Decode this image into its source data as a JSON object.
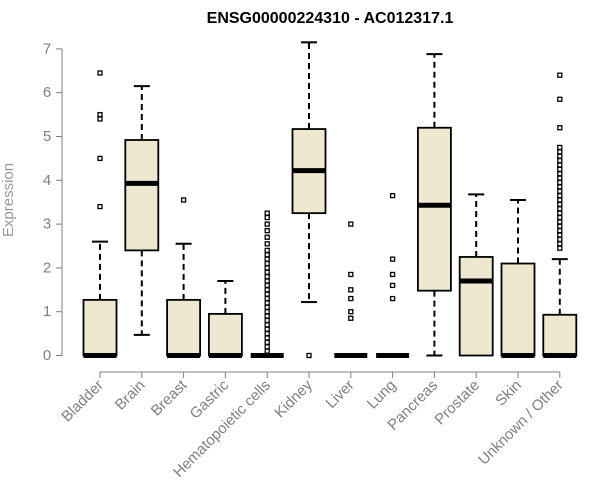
{
  "chart_data": {
    "type": "boxplot",
    "title": "ENSG00000224310 - AC012317.1",
    "xlabel": "",
    "ylabel": "Expression",
    "ylim": [
      0,
      7.2
    ],
    "yticks": [
      0,
      1,
      2,
      3,
      4,
      5,
      6,
      7
    ],
    "grid": false,
    "box_fill": "#efe8d0",
    "box_stroke": "#000000",
    "axis_color": "#7f7f7f",
    "categories": [
      "Bladder",
      "Brain",
      "Breast",
      "Gastric",
      "Hematopoietic cells",
      "Kidney",
      "Liver",
      "Lung",
      "Pancreas",
      "Prostate",
      "Skin",
      "Unknown / Other"
    ],
    "boxes": [
      {
        "q1": 0,
        "median": 0,
        "q3": 1.27,
        "whisker_low": 0,
        "whisker_high": 2.6,
        "outliers": [
          3.4,
          4.5,
          5.4,
          5.5,
          6.45
        ]
      },
      {
        "q1": 2.4,
        "median": 3.93,
        "q3": 4.92,
        "whisker_low": 0.47,
        "whisker_high": 6.15,
        "outliers": []
      },
      {
        "q1": 0,
        "median": 0,
        "q3": 1.27,
        "whisker_low": 0,
        "whisker_high": 2.55,
        "outliers": [
          3.55
        ]
      },
      {
        "q1": 0,
        "median": 0,
        "q3": 0.95,
        "whisker_low": 0,
        "whisker_high": 1.7,
        "outliers": []
      },
      {
        "q1": 0,
        "median": 0,
        "q3": 0,
        "whisker_low": 0,
        "whisker_high": 0,
        "outliers": [
          0.1,
          0.2,
          0.3,
          0.4,
          0.5,
          0.6,
          0.7,
          0.8,
          0.9,
          1.0,
          1.1,
          1.2,
          1.3,
          1.4,
          1.5,
          1.6,
          1.7,
          1.8,
          1.9,
          2.0,
          2.1,
          2.2,
          2.3,
          2.4,
          2.55,
          2.7,
          2.85,
          3.0,
          3.15,
          3.25
        ]
      },
      {
        "q1": 3.25,
        "median": 4.22,
        "q3": 5.17,
        "whisker_low": 1.22,
        "whisker_high": 7.15,
        "outliers": [
          0
        ]
      },
      {
        "q1": 0,
        "median": 0,
        "q3": 0,
        "whisker_low": 0,
        "whisker_high": 0,
        "outliers": [
          0.85,
          1.0,
          1.3,
          1.5,
          1.85,
          3.0
        ]
      },
      {
        "q1": 0,
        "median": 0,
        "q3": 0,
        "whisker_low": 0,
        "whisker_high": 0,
        "outliers": [
          1.3,
          1.6,
          1.85,
          2.2,
          3.65
        ]
      },
      {
        "q1": 1.48,
        "median": 3.43,
        "q3": 5.2,
        "whisker_low": 0,
        "whisker_high": 6.88,
        "outliers": []
      },
      {
        "q1": 0,
        "median": 1.7,
        "q3": 2.25,
        "whisker_low": 0,
        "whisker_high": 3.68,
        "outliers": []
      },
      {
        "q1": 0,
        "median": 0,
        "q3": 2.1,
        "whisker_low": 0,
        "whisker_high": 3.55,
        "outliers": []
      },
      {
        "q1": 0,
        "median": 0,
        "q3": 0.93,
        "whisker_low": 0,
        "whisker_high": 2.2,
        "outliers": [
          2.45,
          2.55,
          2.65,
          2.75,
          2.85,
          2.95,
          3.05,
          3.15,
          3.25,
          3.35,
          3.45,
          3.55,
          3.65,
          3.75,
          3.85,
          3.95,
          4.05,
          4.15,
          4.25,
          4.35,
          4.45,
          4.55,
          4.65,
          4.75,
          5.2,
          5.85,
          6.4
        ]
      }
    ]
  }
}
